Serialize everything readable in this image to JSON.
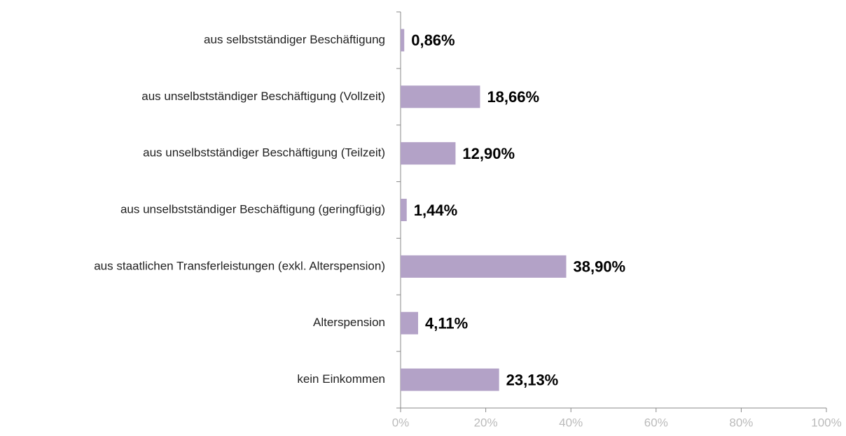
{
  "chart_data": {
    "type": "bar",
    "orientation": "horizontal",
    "categories": [
      "aus selbstständiger Beschäftigung",
      "aus unselbstständiger Beschäftigung (Vollzeit)",
      "aus unselbstständiger Beschäftigung (Teilzeit)",
      "aus unselbstständiger Beschäftigung (geringfügig)",
      "aus staatlichen Transferleistungen (exkl. Alterspension)",
      "Alterspension",
      "kein Einkommen"
    ],
    "values": [
      0.86,
      18.66,
      12.9,
      1.44,
      38.9,
      4.11,
      23.13
    ],
    "value_labels": [
      "0,86%",
      "18,66%",
      "12,90%",
      "1,44%",
      "38,90%",
      "4,11%",
      "23,13%"
    ],
    "color": "#b3a2c7",
    "xlim": [
      0,
      100
    ],
    "xticks": [
      {
        "value": 0,
        "label": "0%"
      },
      {
        "value": 20,
        "label": "20%"
      },
      {
        "value": 40,
        "label": "40%"
      },
      {
        "value": 60,
        "label": "60%"
      },
      {
        "value": 80,
        "label": "80%"
      },
      {
        "value": 100,
        "label": "100%"
      }
    ],
    "grid": false
  }
}
